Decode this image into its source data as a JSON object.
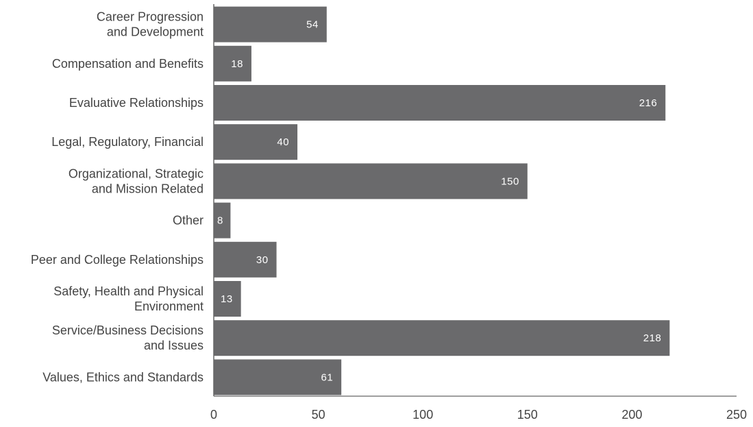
{
  "chart_data": {
    "type": "bar",
    "orientation": "horizontal",
    "categories": [
      [
        "Career Progression",
        "and Development"
      ],
      [
        "Compensation and Benefits"
      ],
      [
        "Evaluative Relationships"
      ],
      [
        "Legal, Regulatory, Financial"
      ],
      [
        "Organizational, Strategic",
        "and Mission Related"
      ],
      [
        "Other"
      ],
      [
        "Peer and College Relationships"
      ],
      [
        "Safety, Health and Physical",
        "Environment"
      ],
      [
        "Service/Business Decisions",
        "and Issues"
      ],
      [
        "Values, Ethics and Standards"
      ]
    ],
    "values": [
      54,
      18,
      216,
      40,
      150,
      8,
      30,
      13,
      218,
      61
    ],
    "value_labels": [
      "54",
      "18",
      "216",
      "40",
      "150",
      "8",
      "30",
      "13",
      "218",
      "61"
    ],
    "xlim": [
      0,
      250
    ],
    "xticks": [
      0,
      50,
      100,
      150,
      200,
      250
    ],
    "xtick_labels": [
      "0",
      "50",
      "100",
      "150",
      "200",
      "250"
    ],
    "grid": false,
    "title": "",
    "xlabel": "",
    "ylabel": "",
    "colors": {
      "bar": "#6a6a6c",
      "axis": "#666666",
      "value_text": "#ffffff",
      "label_text": "#444444"
    }
  }
}
